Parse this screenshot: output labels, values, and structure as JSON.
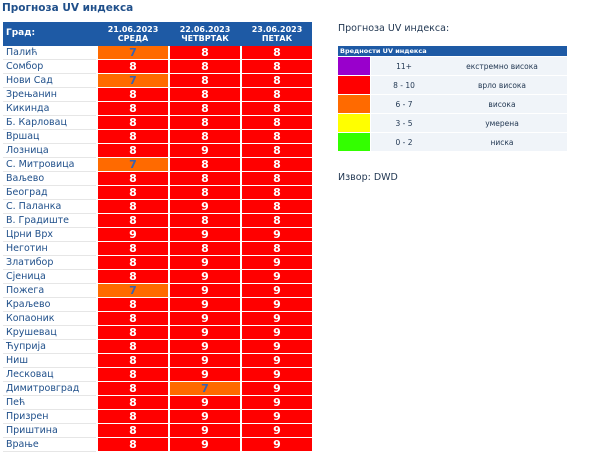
{
  "page_title": "Прогноза UV индекса",
  "table": {
    "city_header": "Град:",
    "days": [
      {
        "date": "21.06.2023",
        "weekday": "СРЕДА"
      },
      {
        "date": "22.06.2023",
        "weekday": "ЧЕТВРТАК"
      },
      {
        "date": "23.06.2023",
        "weekday": "ПЕТАК"
      }
    ],
    "rows": [
      {
        "city": "Палић",
        "values": [
          "7",
          "8",
          "8"
        ]
      },
      {
        "city": "Сомбор",
        "values": [
          "8",
          "8",
          "8"
        ]
      },
      {
        "city": "Нови Сад",
        "values": [
          "7",
          "8",
          "8"
        ]
      },
      {
        "city": "Зрењанин",
        "values": [
          "8",
          "8",
          "8"
        ]
      },
      {
        "city": "Кикинда",
        "values": [
          "8",
          "8",
          "8"
        ]
      },
      {
        "city": "Б. Карловац",
        "values": [
          "8",
          "8",
          "8"
        ]
      },
      {
        "city": "Вршац",
        "values": [
          "8",
          "8",
          "8"
        ]
      },
      {
        "city": "Лозница",
        "values": [
          "8",
          "9",
          "8"
        ]
      },
      {
        "city": "С. Митровица",
        "values": [
          "7",
          "8",
          "8"
        ]
      },
      {
        "city": "Ваљево",
        "values": [
          "8",
          "8",
          "8"
        ]
      },
      {
        "city": "Београд",
        "values": [
          "8",
          "8",
          "8"
        ]
      },
      {
        "city": "С. Паланка",
        "values": [
          "8",
          "9",
          "8"
        ]
      },
      {
        "city": "В. Градиште",
        "values": [
          "8",
          "8",
          "8"
        ]
      },
      {
        "city": "Црни Врх",
        "values": [
          "9",
          "9",
          "9"
        ]
      },
      {
        "city": "Неготин",
        "values": [
          "8",
          "8",
          "8"
        ]
      },
      {
        "city": "Златибор",
        "values": [
          "8",
          "9",
          "9"
        ]
      },
      {
        "city": "Сјеница",
        "values": [
          "8",
          "9",
          "9"
        ]
      },
      {
        "city": "Пожега",
        "values": [
          "7",
          "9",
          "9"
        ]
      },
      {
        "city": "Краљево",
        "values": [
          "8",
          "9",
          "9"
        ]
      },
      {
        "city": "Копаоник",
        "values": [
          "8",
          "9",
          "9"
        ]
      },
      {
        "city": "Крушевац",
        "values": [
          "8",
          "9",
          "9"
        ]
      },
      {
        "city": "Ћуприја",
        "values": [
          "8",
          "9",
          "9"
        ]
      },
      {
        "city": "Ниш",
        "values": [
          "8",
          "9",
          "9"
        ]
      },
      {
        "city": "Лесковац",
        "values": [
          "8",
          "9",
          "9"
        ]
      },
      {
        "city": "Димитровград",
        "values": [
          "8",
          "7",
          "9"
        ]
      },
      {
        "city": "Пећ",
        "values": [
          "8",
          "9",
          "9"
        ]
      },
      {
        "city": "Призрен",
        "values": [
          "8",
          "9",
          "9"
        ]
      },
      {
        "city": "Приштина",
        "values": [
          "8",
          "9",
          "9"
        ]
      },
      {
        "city": "Врање",
        "values": [
          "8",
          "9",
          "9"
        ]
      }
    ]
  },
  "legend": {
    "title": "Прогноза UV индекса:",
    "header": "Вредности UV индекса",
    "items": [
      {
        "color": "#9900cc",
        "range": "11+",
        "label": "екстремно висока"
      },
      {
        "color": "#ff0000",
        "range": "8 - 10",
        "label": "врло висока"
      },
      {
        "color": "#ff6a00",
        "range": "6 - 7",
        "label": "висока"
      },
      {
        "color": "#ffff00",
        "range": "3 - 5",
        "label": "умерена"
      },
      {
        "color": "#33ff00",
        "range": "0 - 2",
        "label": "ниска"
      }
    ]
  },
  "source": "Извор: DWD",
  "colors": {
    "header_bg": "#1e5aa5",
    "value_red": "#ff0000",
    "value_orange": "#ff6a00"
  }
}
